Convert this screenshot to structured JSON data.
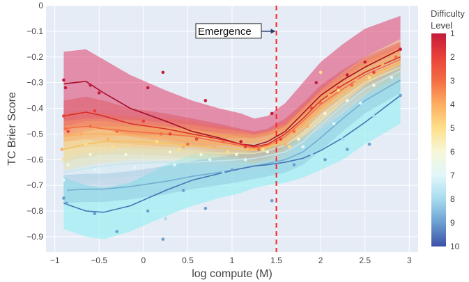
{
  "chart_data": {
    "type": "line",
    "xlabel": "log compute (M)",
    "ylabel": "TC Brier Score",
    "xlim": [
      -1.1,
      3.1
    ],
    "ylim": [
      -0.96,
      0.0
    ],
    "xticks": [
      -1,
      -0.5,
      0,
      0.5,
      1,
      1.5,
      2,
      2.5,
      3
    ],
    "xtick_labels": [
      "−1",
      "−0.5",
      "0",
      "0.5",
      "1",
      "1.5",
      "2",
      "2.5",
      "3"
    ],
    "yticks": [
      0,
      -0.1,
      -0.2,
      -0.3,
      -0.4,
      -0.5,
      -0.6,
      -0.7,
      -0.8,
      -0.9
    ],
    "ytick_labels": [
      "0",
      "−0.1",
      "−0.2",
      "−0.3",
      "−0.4",
      "−0.5",
      "−0.6",
      "−0.7",
      "−0.8",
      "−0.9"
    ],
    "grid": true,
    "emergence": {
      "x": 1.5,
      "label": "Emergence",
      "arrow_y": -0.1
    },
    "colorbar": {
      "title_line1": "Difficulty",
      "title_line2": "Level",
      "min": 1,
      "max": 10,
      "ticks": [
        1,
        2,
        3,
        4,
        5,
        6,
        7,
        8,
        9,
        10
      ],
      "tick_labels": [
        "1",
        "2",
        "3",
        "4",
        "5",
        "6",
        "7",
        "8",
        "9",
        "10"
      ],
      "colors": [
        "#c51b3a",
        "#e8423a",
        "#f46d43",
        "#fdae61",
        "#fee08b",
        "#f7f7d9",
        "#e0f7fa",
        "#a6dbee",
        "#6a9fd0",
        "#3b4fa8"
      ]
    },
    "x": [
      -0.9,
      -0.65,
      -0.45,
      -0.15,
      0.25,
      0.55,
      0.85,
      1.1,
      1.25,
      1.4,
      1.6,
      1.8,
      2.0,
      2.25,
      2.5,
      2.9
    ],
    "series": [
      {
        "name": "1",
        "color": "#a50f2e",
        "values": [
          -0.305,
          -0.295,
          -0.34,
          -0.4,
          -0.45,
          -0.49,
          -0.515,
          -0.54,
          -0.545,
          -0.53,
          -0.49,
          -0.42,
          -0.35,
          -0.29,
          -0.24,
          -0.17
        ]
      },
      {
        "name": "2",
        "color": "#d73027",
        "values": [
          -0.43,
          -0.415,
          -0.43,
          -0.46,
          -0.48,
          -0.5,
          -0.52,
          -0.54,
          -0.55,
          -0.54,
          -0.5,
          -0.44,
          -0.37,
          -0.31,
          -0.26,
          -0.2
        ]
      },
      {
        "name": "3",
        "color": "#f46d43",
        "values": [
          -0.48,
          -0.47,
          -0.48,
          -0.49,
          -0.5,
          -0.51,
          -0.53,
          -0.545,
          -0.555,
          -0.545,
          -0.51,
          -0.45,
          -0.385,
          -0.325,
          -0.27,
          -0.21
        ]
      },
      {
        "name": "4",
        "color": "#fdae61",
        "values": [
          -0.51,
          -0.5,
          -0.5,
          -0.505,
          -0.515,
          -0.525,
          -0.54,
          -0.55,
          -0.56,
          -0.55,
          -0.52,
          -0.46,
          -0.4,
          -0.335,
          -0.28,
          -0.22
        ]
      },
      {
        "name": "5",
        "color": "#f5c25e",
        "values": [
          -0.56,
          -0.54,
          -0.53,
          -0.53,
          -0.535,
          -0.545,
          -0.555,
          -0.56,
          -0.565,
          -0.555,
          -0.53,
          -0.475,
          -0.41,
          -0.345,
          -0.29,
          -0.225
        ]
      },
      {
        "name": "6",
        "color": "#e6e0b0",
        "values": [
          -0.6,
          -0.58,
          -0.57,
          -0.565,
          -0.565,
          -0.57,
          -0.575,
          -0.575,
          -0.575,
          -0.565,
          -0.545,
          -0.495,
          -0.43,
          -0.36,
          -0.3,
          -0.24
        ]
      },
      {
        "name": "7",
        "color": "#c5e6ef",
        "values": [
          -0.65,
          -0.635,
          -0.625,
          -0.615,
          -0.61,
          -0.61,
          -0.605,
          -0.6,
          -0.595,
          -0.585,
          -0.57,
          -0.53,
          -0.465,
          -0.39,
          -0.325,
          -0.255
        ]
      },
      {
        "name": "8",
        "color": "#74add1",
        "values": [
          -0.72,
          -0.715,
          -0.715,
          -0.705,
          -0.685,
          -0.665,
          -0.65,
          -0.635,
          -0.625,
          -0.615,
          -0.6,
          -0.57,
          -0.515,
          -0.44,
          -0.37,
          -0.29
        ]
      },
      {
        "name": "9",
        "color": "#4575b4",
        "values": [
          -0.77,
          -0.8,
          -0.805,
          -0.78,
          -0.72,
          -0.68,
          -0.655,
          -0.635,
          -0.625,
          -0.62,
          -0.61,
          -0.595,
          -0.565,
          -0.515,
          -0.455,
          -0.35
        ]
      }
    ],
    "bands": [
      {
        "name": "1",
        "color": "#e0406a",
        "upper": [
          -0.18,
          -0.17,
          -0.21,
          -0.27,
          -0.33,
          -0.37,
          -0.4,
          -0.42,
          -0.44,
          -0.43,
          -0.38,
          -0.3,
          -0.22,
          -0.15,
          -0.09,
          -0.04
        ],
        "lower": [
          -0.51,
          -0.49,
          -0.48,
          -0.5,
          -0.52,
          -0.54,
          -0.56,
          -0.57,
          -0.58,
          -0.58,
          -0.55,
          -0.49,
          -0.42,
          -0.36,
          -0.3,
          -0.24
        ]
      },
      {
        "name": "5",
        "color": "#fde4a0",
        "upper": [
          -0.47,
          -0.45,
          -0.45,
          -0.46,
          -0.47,
          -0.48,
          -0.5,
          -0.51,
          -0.52,
          -0.51,
          -0.47,
          -0.4,
          -0.33,
          -0.26,
          -0.2,
          -0.13
        ],
        "lower": [
          -0.64,
          -0.62,
          -0.61,
          -0.6,
          -0.6,
          -0.6,
          -0.6,
          -0.6,
          -0.6,
          -0.59,
          -0.57,
          -0.53,
          -0.47,
          -0.41,
          -0.36,
          -0.3
        ]
      },
      {
        "name": "9",
        "color": "#9cf0f2",
        "upper": [
          -0.67,
          -0.7,
          -0.71,
          -0.69,
          -0.62,
          -0.58,
          -0.56,
          -0.55,
          -0.55,
          -0.55,
          -0.54,
          -0.52,
          -0.48,
          -0.42,
          -0.35,
          -0.25
        ]
      },
      {
        "name": "9-lower",
        "color": "#9cf0f2",
        "upper": [
          -0.67,
          -0.7,
          -0.71,
          -0.69,
          -0.62,
          -0.58,
          -0.56,
          -0.55,
          -0.55,
          -0.55,
          -0.54,
          -0.52,
          -0.48,
          -0.42,
          -0.35,
          -0.25
        ],
        "lower": [
          -0.87,
          -0.9,
          -0.91,
          -0.88,
          -0.82,
          -0.78,
          -0.75,
          -0.73,
          -0.71,
          -0.7,
          -0.69,
          -0.67,
          -0.64,
          -0.6,
          -0.54,
          -0.46
        ]
      }
    ],
    "points": [
      [
        -0.9,
        -0.29,
        1
      ],
      [
        -0.88,
        -0.32,
        1
      ],
      [
        -0.6,
        -0.31,
        1
      ],
      [
        -0.5,
        -0.34,
        1
      ],
      [
        0.05,
        -0.32,
        1
      ],
      [
        0.22,
        -0.26,
        1
      ],
      [
        0.7,
        -0.37,
        1
      ],
      [
        1.1,
        -0.53,
        1
      ],
      [
        1.45,
        -0.42,
        1
      ],
      [
        1.95,
        -0.3,
        1
      ],
      [
        2.3,
        -0.27,
        1
      ],
      [
        2.5,
        -0.22,
        1
      ],
      [
        2.9,
        -0.17,
        1
      ],
      [
        -0.9,
        -0.43,
        2
      ],
      [
        -0.85,
        -0.49,
        2
      ],
      [
        -0.55,
        -0.41,
        2
      ],
      [
        0.0,
        -0.45,
        2
      ],
      [
        0.3,
        -0.5,
        2
      ],
      [
        0.6,
        -0.52,
        2
      ],
      [
        1.15,
        -0.55,
        2
      ],
      [
        1.55,
        -0.52,
        2
      ],
      [
        1.9,
        -0.4,
        2
      ],
      [
        2.2,
        -0.32,
        2
      ],
      [
        2.6,
        -0.26,
        2
      ],
      [
        -0.88,
        -0.48,
        3
      ],
      [
        -0.6,
        -0.47,
        3
      ],
      [
        -0.3,
        -0.49,
        3
      ],
      [
        0.2,
        -0.5,
        3
      ],
      [
        0.5,
        -0.54,
        3
      ],
      [
        0.9,
        -0.53,
        3
      ],
      [
        1.3,
        -0.56,
        3
      ],
      [
        1.7,
        -0.49,
        3
      ],
      [
        2.0,
        -0.38,
        3
      ],
      [
        2.35,
        -0.31,
        3
      ],
      [
        2.85,
        -0.2,
        3
      ],
      [
        -0.92,
        -0.56,
        4
      ],
      [
        -0.7,
        -0.5,
        4
      ],
      [
        -0.4,
        -0.52,
        4
      ],
      [
        0.1,
        -0.51,
        4
      ],
      [
        0.45,
        -0.55,
        4
      ],
      [
        0.8,
        -0.55,
        4
      ],
      [
        1.2,
        -0.56,
        4
      ],
      [
        1.6,
        -0.54,
        4
      ],
      [
        1.85,
        -0.47,
        4
      ],
      [
        2.1,
        -0.35,
        4
      ],
      [
        2.4,
        -0.29,
        4
      ],
      [
        2.7,
        -0.23,
        4
      ],
      [
        -0.9,
        -0.6,
        5
      ],
      [
        -0.65,
        -0.54,
        5
      ],
      [
        -0.35,
        -0.55,
        5
      ],
      [
        0.15,
        -0.53,
        5
      ],
      [
        0.4,
        -0.56,
        5
      ],
      [
        0.95,
        -0.57,
        5
      ],
      [
        1.35,
        -0.56,
        5
      ],
      [
        1.65,
        -0.55,
        5
      ],
      [
        2.0,
        -0.26,
        5
      ],
      [
        2.2,
        -0.33,
        5
      ],
      [
        2.55,
        -0.28,
        5
      ],
      [
        -0.85,
        -0.62,
        6
      ],
      [
        -0.6,
        -0.58,
        6
      ],
      [
        -0.2,
        -0.58,
        6
      ],
      [
        0.3,
        -0.57,
        6
      ],
      [
        0.65,
        -0.58,
        6
      ],
      [
        1.05,
        -0.58,
        6
      ],
      [
        1.4,
        -0.57,
        6
      ],
      [
        1.75,
        -0.52,
        6
      ],
      [
        2.05,
        -0.42,
        6
      ],
      [
        2.3,
        -0.37,
        6
      ],
      [
        2.6,
        -0.31,
        6
      ],
      [
        -0.9,
        -0.68,
        7
      ],
      [
        -0.55,
        -0.64,
        7
      ],
      [
        -0.1,
        -0.63,
        7
      ],
      [
        0.35,
        -0.62,
        7
      ],
      [
        0.75,
        -0.6,
        7
      ],
      [
        1.15,
        -0.6,
        7
      ],
      [
        1.5,
        -0.59,
        7
      ],
      [
        1.8,
        -0.55,
        7
      ],
      [
        2.15,
        -0.46,
        7
      ],
      [
        2.45,
        -0.38,
        7
      ],
      [
        2.8,
        -0.28,
        7
      ],
      [
        -0.88,
        -0.72,
        8
      ],
      [
        -0.65,
        -0.74,
        8
      ],
      [
        -0.4,
        -0.73,
        8
      ],
      [
        0.1,
        -0.7,
        8
      ],
      [
        0.25,
        -0.83,
        8
      ],
      [
        0.5,
        -0.66,
        8
      ],
      [
        0.9,
        -0.65,
        8
      ],
      [
        1.25,
        -0.64,
        8
      ],
      [
        1.6,
        -0.62,
        8
      ],
      [
        1.9,
        -0.58,
        8
      ],
      [
        2.25,
        -0.52,
        8
      ],
      [
        2.6,
        -0.43,
        8
      ],
      [
        -0.9,
        -0.75,
        9
      ],
      [
        -0.87,
        -0.77,
        9
      ],
      [
        -0.55,
        -0.81,
        9
      ],
      [
        -0.3,
        -0.88,
        9
      ],
      [
        0.05,
        -0.8,
        9
      ],
      [
        0.22,
        -0.91,
        9
      ],
      [
        0.45,
        -0.72,
        9
      ],
      [
        0.7,
        -0.79,
        9
      ],
      [
        1.0,
        -0.64,
        9
      ],
      [
        1.45,
        -0.76,
        9
      ],
      [
        1.7,
        -0.62,
        9
      ],
      [
        2.05,
        -0.6,
        9
      ],
      [
        2.3,
        -0.56,
        9
      ],
      [
        2.55,
        -0.54,
        9
      ],
      [
        2.9,
        -0.35,
        9
      ]
    ]
  }
}
